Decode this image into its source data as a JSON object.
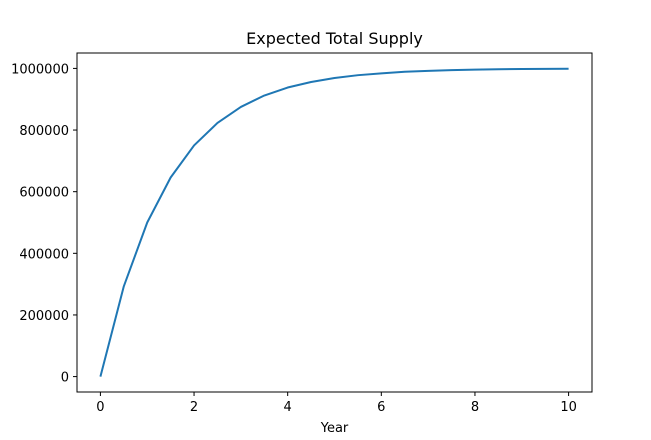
{
  "chart_data": {
    "type": "line",
    "title": "Expected Total Supply",
    "xlabel": "Year",
    "ylabel": "",
    "xlim": [
      -0.5,
      10.5
    ],
    "ylim": [
      -50000,
      1050000
    ],
    "xticks": [
      0,
      2,
      4,
      6,
      8,
      10
    ],
    "xtick_labels": [
      "0",
      "2",
      "4",
      "6",
      "8",
      "10"
    ],
    "yticks": [
      0,
      200000,
      400000,
      600000,
      800000,
      1000000
    ],
    "ytick_labels": [
      "0",
      "200000",
      "400000",
      "600000",
      "800000",
      "1000000"
    ],
    "grid": false,
    "legend": "none",
    "series": [
      {
        "color": "#1f77b4",
        "x": [
          0,
          0.5,
          1,
          1.5,
          2,
          2.5,
          3,
          3.5,
          4,
          4.5,
          5,
          5.5,
          6,
          6.5,
          7,
          7.5,
          8,
          8.5,
          9,
          9.5,
          10
        ],
        "y": [
          0,
          293000,
          500000,
          646000,
          750000,
          823000,
          875000,
          912000,
          938000,
          956000,
          969000,
          978000,
          984000,
          989000,
          992000,
          994500,
          996000,
          997200,
          998000,
          998600,
          999000
        ]
      }
    ]
  }
}
